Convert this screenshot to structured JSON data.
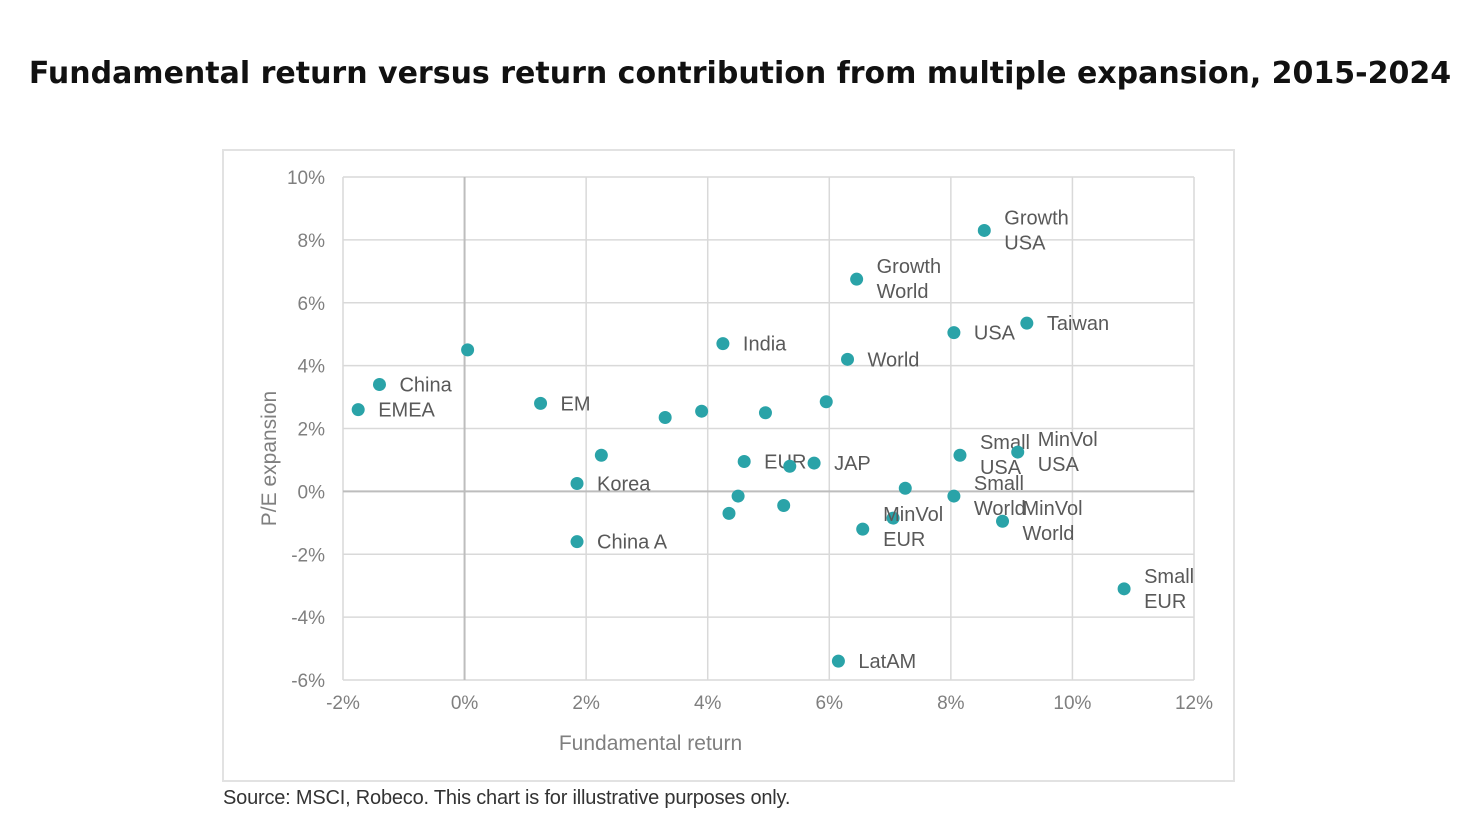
{
  "title": "Fundamental return versus return contribution from multiple expansion, 2015-2024",
  "source": "Source: MSCI, Robeco. This chart is for illustrative purposes only.",
  "colors": {
    "marker": "#2aa3a8",
    "grid": "#d9d9d9",
    "axis_text": "#7f7f7f",
    "label_text": "#595959"
  },
  "chart_data": {
    "type": "scatter",
    "xlabel": "Fundamental return",
    "ylabel": "P/E expansion",
    "xlim": [
      -2,
      12
    ],
    "ylim": [
      -6,
      10
    ],
    "x_ticks": [
      -2,
      0,
      2,
      4,
      6,
      8,
      10,
      12
    ],
    "y_ticks": [
      -6,
      -4,
      -2,
      0,
      2,
      4,
      6,
      8,
      10
    ],
    "x_tick_labels": [
      "-2%",
      "0%",
      "2%",
      "4%",
      "6%",
      "8%",
      "10%",
      "12%"
    ],
    "y_tick_labels": [
      "-6%",
      "-4%",
      "-2%",
      "0%",
      "2%",
      "4%",
      "6%",
      "8%",
      "10%"
    ],
    "grid": true,
    "points": [
      {
        "x": 8.55,
        "y": 8.3,
        "label": [
          "Growth",
          "USA"
        ]
      },
      {
        "x": 6.45,
        "y": 6.75,
        "label": [
          "Growth",
          "World"
        ]
      },
      {
        "x": 8.05,
        "y": 5.05,
        "label": [
          "USA"
        ]
      },
      {
        "x": 9.25,
        "y": 5.35,
        "label": [
          "Taiwan"
        ]
      },
      {
        "x": 4.25,
        "y": 4.7,
        "label": [
          "India"
        ]
      },
      {
        "x": 6.3,
        "y": 4.2,
        "label": [
          "World"
        ]
      },
      {
        "x": 0.05,
        "y": 4.5,
        "label": []
      },
      {
        "x": -1.4,
        "y": 3.4,
        "label": [
          "China"
        ]
      },
      {
        "x": -1.75,
        "y": 2.6,
        "label": [
          "EMEA"
        ]
      },
      {
        "x": 1.25,
        "y": 2.8,
        "label": [
          "EM"
        ]
      },
      {
        "x": 3.3,
        "y": 2.35,
        "label": []
      },
      {
        "x": 3.9,
        "y": 2.55,
        "label": []
      },
      {
        "x": 4.95,
        "y": 2.5,
        "label": []
      },
      {
        "x": 5.95,
        "y": 2.85,
        "label": []
      },
      {
        "x": 2.25,
        "y": 1.15,
        "label": []
      },
      {
        "x": 4.6,
        "y": 0.95,
        "label": [
          "EUR"
        ]
      },
      {
        "x": 5.35,
        "y": 0.8,
        "label": []
      },
      {
        "x": 5.75,
        "y": 0.9,
        "label": [
          "JAP"
        ]
      },
      {
        "x": 8.15,
        "y": 1.15,
        "label": [
          "Small",
          "USA"
        ]
      },
      {
        "x": 9.1,
        "y": 1.25,
        "label": [
          "MinVol",
          "USA"
        ]
      },
      {
        "x": 1.85,
        "y": 0.25,
        "label": [
          "Korea"
        ]
      },
      {
        "x": 7.25,
        "y": 0.1,
        "label": []
      },
      {
        "x": 8.05,
        "y": -0.15,
        "label": [
          "Small",
          "World"
        ]
      },
      {
        "x": 4.5,
        "y": -0.15,
        "label": []
      },
      {
        "x": 5.25,
        "y": -0.45,
        "label": []
      },
      {
        "x": 4.35,
        "y": -0.7,
        "label": []
      },
      {
        "x": 7.05,
        "y": -0.85,
        "label": [
          "MinVol",
          "EUR"
        ]
      },
      {
        "x": 6.55,
        "y": -1.2,
        "label": []
      },
      {
        "x": 8.85,
        "y": -0.95,
        "label": [
          "MinVol",
          "World"
        ]
      },
      {
        "x": 1.85,
        "y": -1.6,
        "label": [
          "China A"
        ]
      },
      {
        "x": 10.85,
        "y": -3.1,
        "label": [
          "Small",
          "EUR"
        ]
      },
      {
        "x": 6.15,
        "y": -5.4,
        "label": [
          "LatAM"
        ]
      }
    ]
  }
}
